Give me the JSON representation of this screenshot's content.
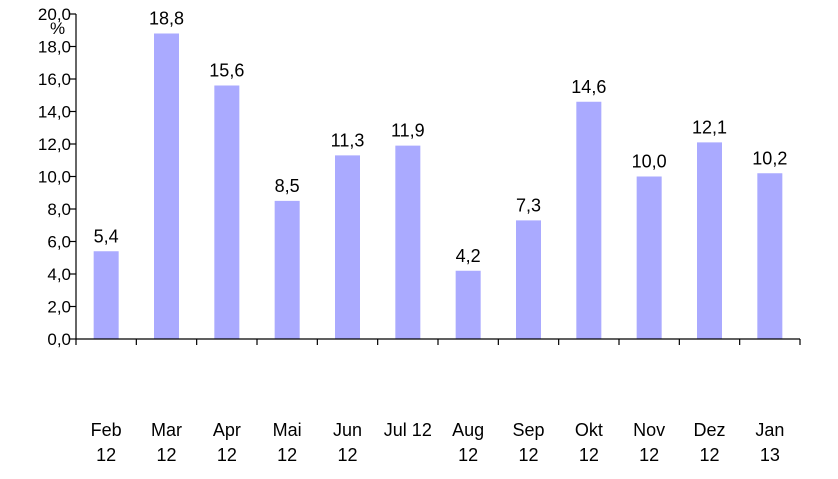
{
  "chart_data": {
    "type": "bar",
    "unit": "%",
    "categories": [
      [
        "Feb",
        "12"
      ],
      [
        "Mar",
        "12"
      ],
      [
        "Apr",
        "12"
      ],
      [
        "Mai",
        "12"
      ],
      [
        "Jun",
        "12"
      ],
      [
        "Jul 12",
        ""
      ],
      [
        "Aug",
        "12"
      ],
      [
        "Sep",
        "12"
      ],
      [
        "Okt",
        "12"
      ],
      [
        "Nov",
        "12"
      ],
      [
        "Dez",
        "12"
      ],
      [
        "Jan",
        "13"
      ]
    ],
    "values": [
      5.4,
      18.8,
      15.6,
      8.5,
      11.3,
      11.9,
      4.2,
      7.3,
      14.6,
      10.0,
      12.1,
      10.2
    ],
    "value_labels": [
      "5,4",
      "18,8",
      "15,6",
      "8,5",
      "11,3",
      "11,9",
      "4,2",
      "7,3",
      "14,6",
      "10,0",
      "12,1",
      "10,2"
    ],
    "ylim": [
      0,
      20
    ],
    "y_ticks": [
      0,
      2,
      4,
      6,
      8,
      10,
      12,
      14,
      16,
      18,
      20
    ],
    "y_tick_labels": [
      "0,0",
      "2,0",
      "4,0",
      "6,0",
      "8,0",
      "10,0",
      "12,0",
      "14,0",
      "16,0",
      "18,0",
      "20,0"
    ],
    "grid": false,
    "bar_color": "#aaaaff"
  }
}
